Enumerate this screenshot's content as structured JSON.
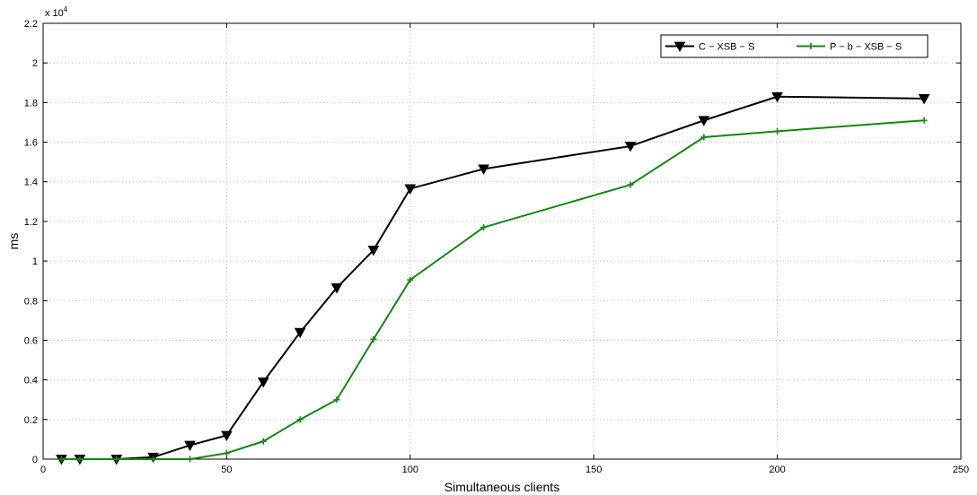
{
  "chart_data": {
    "type": "line",
    "title": "",
    "xlabel": "Simultaneous clients",
    "ylabel": "ms",
    "y_exponent_label": "x 10",
    "y_exponent": "4",
    "xlim": [
      0,
      250
    ],
    "ylim": [
      0,
      22000
    ],
    "x_ticks": [
      0,
      50,
      100,
      150,
      200,
      250
    ],
    "y_ticks": [
      0,
      2000,
      4000,
      6000,
      8000,
      10000,
      12000,
      14000,
      16000,
      18000,
      20000,
      22000
    ],
    "x_tick_labels": [
      "0",
      "50",
      "100",
      "150",
      "200",
      "250"
    ],
    "y_tick_labels": [
      "0",
      "0.2",
      "0.4",
      "0.6",
      "0.8",
      "1",
      "1.2",
      "1.4",
      "1.6",
      "1.8",
      "2",
      "2.2"
    ],
    "grid": true,
    "legend_position": "top-right",
    "series": [
      {
        "name": "C − XSB − S",
        "color": "#000000",
        "marker": "triangle-down",
        "points": [
          [
            5,
            0
          ],
          [
            10,
            0
          ],
          [
            20,
            0
          ],
          [
            30,
            100
          ],
          [
            40,
            700
          ],
          [
            50,
            1200
          ],
          [
            60,
            3900
          ],
          [
            70,
            6400
          ],
          [
            80,
            8650
          ],
          [
            90,
            10550
          ],
          [
            100,
            13650
          ],
          [
            120,
            14650
          ],
          [
            160,
            15800
          ],
          [
            180,
            17100
          ],
          [
            200,
            18300
          ],
          [
            240,
            18200
          ]
        ]
      },
      {
        "name": "P − b − XSB − S",
        "color": "#118811",
        "marker": "plus",
        "points": [
          [
            5,
            0
          ],
          [
            10,
            0
          ],
          [
            20,
            0
          ],
          [
            30,
            0
          ],
          [
            40,
            0
          ],
          [
            50,
            300
          ],
          [
            60,
            900
          ],
          [
            70,
            2000
          ],
          [
            80,
            3000
          ],
          [
            90,
            6050
          ],
          [
            100,
            9050
          ],
          [
            120,
            11700
          ],
          [
            160,
            13850
          ],
          [
            180,
            16250
          ],
          [
            200,
            16550
          ],
          [
            240,
            17100
          ]
        ]
      }
    ]
  }
}
